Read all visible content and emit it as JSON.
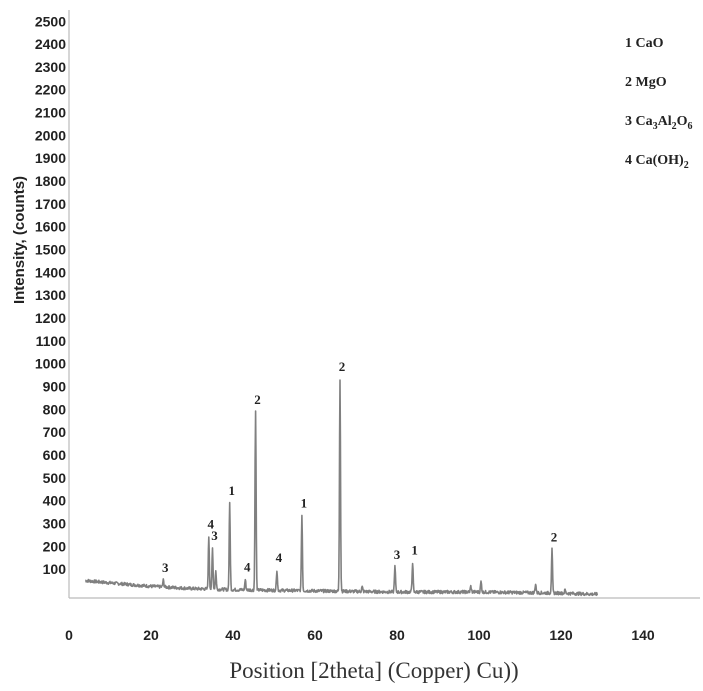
{
  "chart_data": {
    "type": "line",
    "title": "",
    "xlabel": "Position [2theta] (Copper) Cu))",
    "ylabel": "Intensity, (counts)",
    "xlim": [
      0,
      150
    ],
    "ylim": [
      0,
      2500
    ],
    "x_ticks": [
      "0",
      "20",
      "40",
      "60",
      "80",
      "100",
      "120",
      "140"
    ],
    "y_ticks": [
      "100",
      "200",
      "300",
      "400",
      "500",
      "600",
      "700",
      "800",
      "900",
      "1000",
      "1100",
      "1200",
      "1300",
      "1400",
      "1500",
      "1600",
      "1700",
      "1800",
      "1900",
      "2000",
      "2100",
      "2200",
      "2300",
      "2400",
      "2500"
    ],
    "grid": false,
    "legend_position": "top-right",
    "line_color": "#808080",
    "legend": [
      {
        "id": "1",
        "name": "CaO",
        "parts": [
          {
            "t": "1 CaO"
          }
        ]
      },
      {
        "id": "2",
        "name": "MgO",
        "parts": [
          {
            "t": "2 MgO"
          }
        ]
      },
      {
        "id": "3",
        "name": "Ca3Al2O6",
        "parts": [
          {
            "t": "3 Ca"
          },
          {
            "t": "3",
            "sub": true
          },
          {
            "t": "Al"
          },
          {
            "t": "2",
            "sub": true
          },
          {
            "t": "O"
          },
          {
            "t": "6",
            "sub": true
          }
        ]
      },
      {
        "id": "4",
        "name": "Ca(OH)2",
        "parts": [
          {
            "t": "4 Ca(OH)"
          },
          {
            "t": "2",
            "sub": true
          }
        ]
      }
    ],
    "baseline": [
      [
        4,
        50
      ],
      [
        10,
        40
      ],
      [
        20,
        25
      ],
      [
        30,
        15
      ],
      [
        40,
        10
      ],
      [
        60,
        5
      ],
      [
        80,
        0
      ],
      [
        100,
        0
      ],
      [
        120,
        -5
      ],
      [
        129,
        -10
      ]
    ],
    "peaks": [
      {
        "x": 23.0,
        "y": 30,
        "label": "3"
      },
      {
        "x": 34.1,
        "y": 230,
        "label": "4"
      },
      {
        "x": 35.0,
        "y": 180,
        "label": "3"
      },
      {
        "x": 35.8,
        "y": 80
      },
      {
        "x": 39.2,
        "y": 380,
        "label": "1"
      },
      {
        "x": 43.0,
        "y": 45,
        "label": "4"
      },
      {
        "x": 45.5,
        "y": 780,
        "label": "2"
      },
      {
        "x": 50.7,
        "y": 90,
        "label": "4"
      },
      {
        "x": 56.8,
        "y": 330,
        "label": "1"
      },
      {
        "x": 66.1,
        "y": 930,
        "label": "2"
      },
      {
        "x": 71.5,
        "y": 20
      },
      {
        "x": 79.5,
        "y": 110,
        "label": "3"
      },
      {
        "x": 83.8,
        "y": 130,
        "label": "1"
      },
      {
        "x": 98.0,
        "y": 25
      },
      {
        "x": 100.5,
        "y": 45
      },
      {
        "x": 113.8,
        "y": 40
      },
      {
        "x": 117.8,
        "y": 190,
        "label": "2"
      },
      {
        "x": 121.0,
        "y": 15
      }
    ]
  }
}
